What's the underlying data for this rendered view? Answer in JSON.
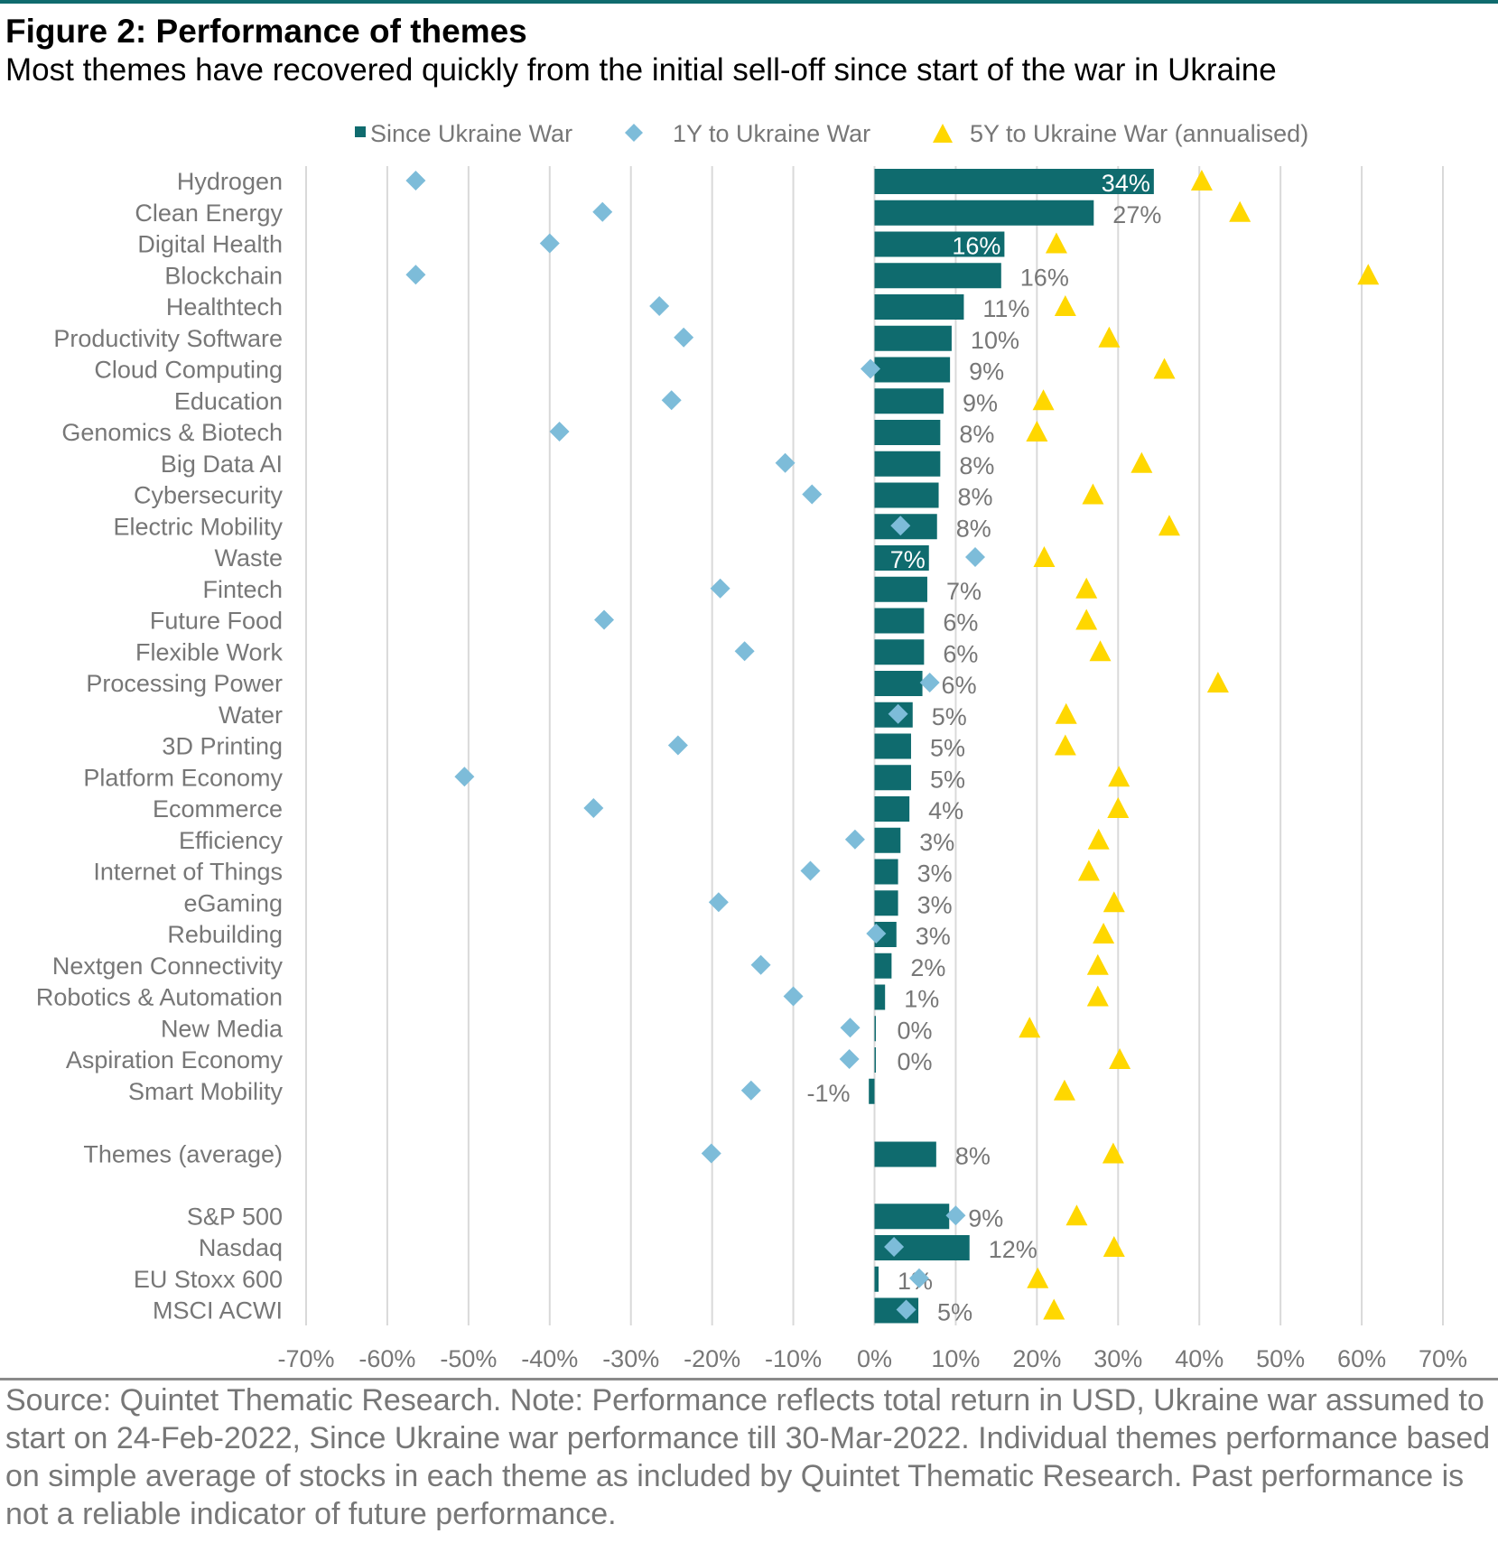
{
  "figure": {
    "title": "Figure 2: Performance of themes",
    "subtitle": "Most themes have recovered quickly from the initial sell-off since start of the war in Ukraine",
    "footnote": "Source: Quintet Thematic Research. Note: Performance reflects total return in USD, Ukraine war assumed to start on 24-Feb-2022, Since Ukraine war performance till 30-Mar-2022. Individual themes performance based on simple average of stocks in each theme as included by Quintet Thematic Research. Past performance is not a reliable indicator of future performance."
  },
  "colors": {
    "bar": "#0f6b6e",
    "diamond": "#7dbcd9",
    "triangle": "#ffd700",
    "grid": "#d9d9d9",
    "label": "#777777"
  },
  "chart_data": {
    "type": "bar",
    "orientation": "horizontal",
    "xlim": [
      -70,
      70
    ],
    "x_ticks": [
      "-70%",
      "-60%",
      "-50%",
      "-40%",
      "-30%",
      "-20%",
      "-10%",
      "0%",
      "10%",
      "20%",
      "30%",
      "40%",
      "50%",
      "60%",
      "70%"
    ],
    "x_tick_values": [
      -70,
      -60,
      -50,
      -40,
      -30,
      -20,
      -10,
      0,
      10,
      20,
      30,
      40,
      50,
      60,
      70
    ],
    "grid": "vertical",
    "legend_position": "top",
    "legend": [
      "Since Ukraine War",
      "1Y to Ukraine War",
      "5Y to Ukraine War (annualised)"
    ],
    "categories": [
      "Hydrogen",
      "Clean Energy",
      "Digital Health",
      "Blockchain",
      "Healthtech",
      "Productivity Software",
      "Cloud Computing",
      "Education",
      "Genomics & Biotech",
      "Big Data AI",
      "Cybersecurity",
      "Electric Mobility",
      "Waste",
      "Fintech",
      "Future Food",
      "Flexible Work",
      "Processing Power",
      "Water",
      "3D Printing ",
      "Platform Economy",
      "Ecommerce",
      "Efficiency",
      "Internet of Things",
      "eGaming",
      "Rebuilding",
      "Nextgen Connectivity",
      "Robotics & Automation",
      "New Media",
      "Aspiration Economy",
      "Smart Mobility",
      "Themes (average)",
      "S&P 500",
      "Nasdaq",
      "EU Stoxx 600",
      "MSCI ACWI"
    ],
    "series": [
      {
        "name": "Since Ukraine War",
        "kind": "bar",
        "values": [
          34.4,
          27.0,
          16.0,
          15.6,
          11.0,
          9.5,
          9.3,
          8.5,
          8.1,
          8.1,
          7.9,
          7.7,
          6.7,
          6.5,
          6.1,
          6.1,
          5.9,
          4.7,
          4.5,
          4.5,
          4.3,
          3.2,
          2.9,
          2.9,
          2.7,
          2.1,
          1.3,
          0.1,
          0.1,
          -0.7,
          7.6,
          9.2,
          11.7,
          0.5,
          5.4
        ],
        "labels": [
          "34%",
          "27%",
          "16%",
          "16%",
          "11%",
          "10%",
          "9%",
          "9%",
          "8%",
          "8%",
          "8%",
          "8%",
          "7%",
          "7%",
          "6%",
          "6%",
          "6%",
          "5%",
          "5%",
          "5%",
          "4%",
          "3%",
          "3%",
          "3%",
          "3%",
          "2%",
          "1%",
          "0%",
          "0%",
          "-1%",
          "8%",
          "9%",
          "12%",
          "1%",
          "5%"
        ]
      },
      {
        "name": "1Y to Ukraine War",
        "kind": "diamond",
        "values": [
          -56.5,
          -33.5,
          -40.0,
          -56.5,
          -26.5,
          -23.5,
          -0.5,
          -25.0,
          -38.8,
          -11.0,
          -7.7,
          3.2,
          12.4,
          -19.0,
          -33.3,
          -16.0,
          6.8,
          2.9,
          -24.2,
          -50.5,
          -34.6,
          -2.4,
          -7.9,
          -19.2,
          0.2,
          -14.0,
          -10.0,
          -3.0,
          -3.1,
          -15.2,
          -20.1,
          10.0,
          2.4,
          5.5,
          3.9
        ]
      },
      {
        "name": "5Y to Ukraine War (annualised)",
        "kind": "triangle",
        "values": [
          40.3,
          45.0,
          22.4,
          60.8,
          23.5,
          28.9,
          35.7,
          20.8,
          20.0,
          32.9,
          26.9,
          36.3,
          20.9,
          26.1,
          26.1,
          27.8,
          42.3,
          23.6,
          23.5,
          30.1,
          30.0,
          27.6,
          26.4,
          29.5,
          28.2,
          27.5,
          27.5,
          19.1,
          30.2,
          23.4,
          29.4,
          24.9,
          29.5,
          20.1,
          22.1
        ]
      }
    ]
  }
}
